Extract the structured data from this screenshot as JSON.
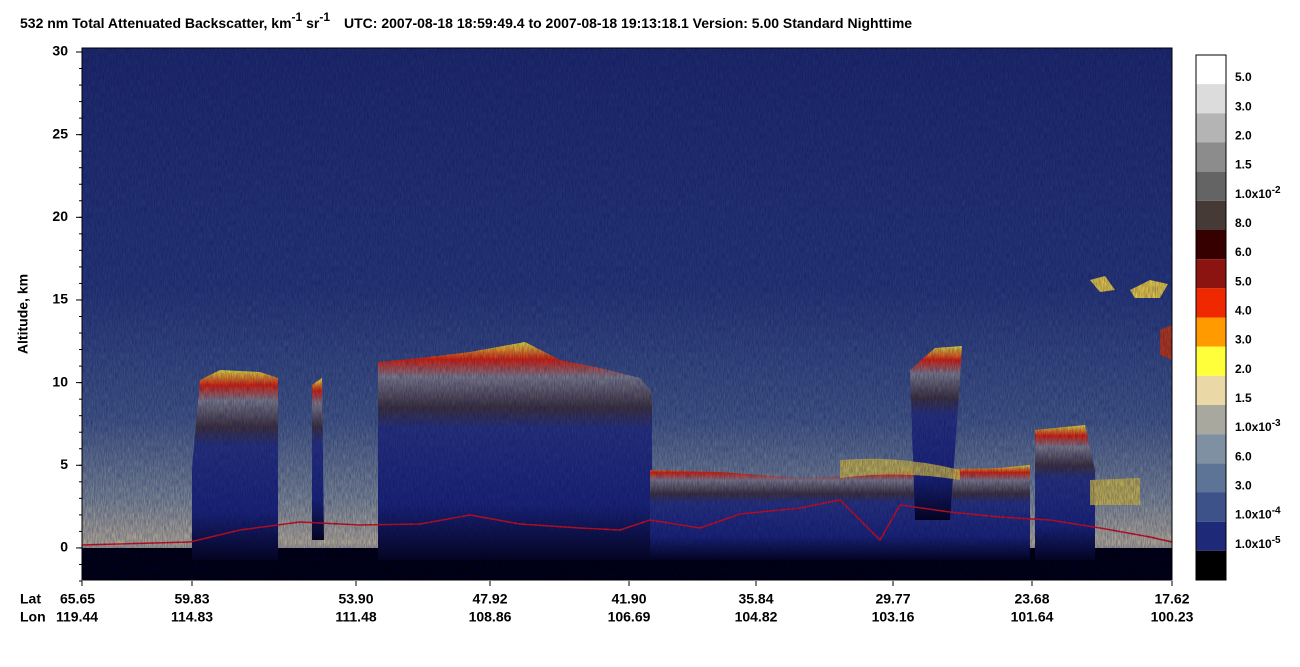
{
  "chart_data": {
    "type": "curtain",
    "title": {
      "main": "532 nm Total Attenuated Backscatter, km",
      "sup1": "-1",
      "mid": " sr",
      "sup2": "-1",
      "rest": "UTC:  2007-08-18 18:59:49.4  to  2007-08-18 19:13:18.1    Version: 5.00  Standard  Nighttime"
    },
    "ylabel": "Altitude, km",
    "ylim": [
      -2,
      30
    ],
    "yticks": [
      0,
      5,
      10,
      15,
      20,
      25,
      30
    ],
    "x_row_labels": [
      "Lat",
      "Lon"
    ],
    "lat": [
      "65.65",
      "59.83",
      "53.90",
      "47.92",
      "41.90",
      "35.84",
      "29.77",
      "23.68",
      "17.62"
    ],
    "lon": [
      "119.44",
      "114.83",
      "111.48",
      "108.86",
      "106.69",
      "104.82",
      "103.16",
      "101.64",
      "100.23"
    ],
    "colorbar": {
      "colors": [
        "#ffffff",
        "#dcdcdc",
        "#b4b4b4",
        "#8c8c8c",
        "#646464",
        "#463a36",
        "#360000",
        "#8c1410",
        "#f02800",
        "#ff9a00",
        "#ffff3a",
        "#ead8a6",
        "#a8a89e",
        "#7e90a2",
        "#5e7496",
        "#3c5288",
        "#1e2a78",
        "#000000"
      ],
      "labels": [
        {
          "base": "5.0"
        },
        {
          "base": "3.0"
        },
        {
          "base": "2.0"
        },
        {
          "base": "1.5"
        },
        {
          "base": "1.0x10",
          "exp": "-2"
        },
        {
          "base": "8.0"
        },
        {
          "base": "6.0"
        },
        {
          "base": "5.0"
        },
        {
          "base": "4.0"
        },
        {
          "base": "3.0"
        },
        {
          "base": "2.0"
        },
        {
          "base": "1.5"
        },
        {
          "base": "1.0x10",
          "exp": "-3"
        },
        {
          "base": "6.0"
        },
        {
          "base": "3.0"
        },
        {
          "base": "1.0x10",
          "exp": "-4"
        },
        {
          "base": "1.0x10",
          "exp": "-5"
        }
      ]
    }
  }
}
